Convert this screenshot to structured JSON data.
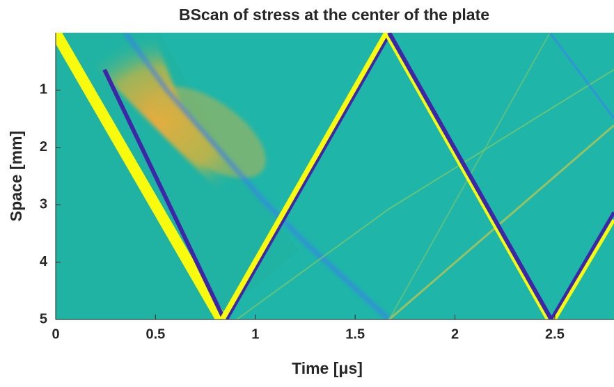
{
  "chart_data": {
    "type": "heatmap",
    "title": "BScan of stress at the center of the plate",
    "xlabel": "Time [μs]",
    "ylabel": "Space [mm]",
    "xlim": [
      0,
      2.8
    ],
    "ylim": [
      5,
      0
    ],
    "xticks": [
      0,
      0.5,
      1,
      1.5,
      2,
      2.5
    ],
    "yticks": [
      1,
      2,
      3,
      4,
      5
    ]
  }
}
